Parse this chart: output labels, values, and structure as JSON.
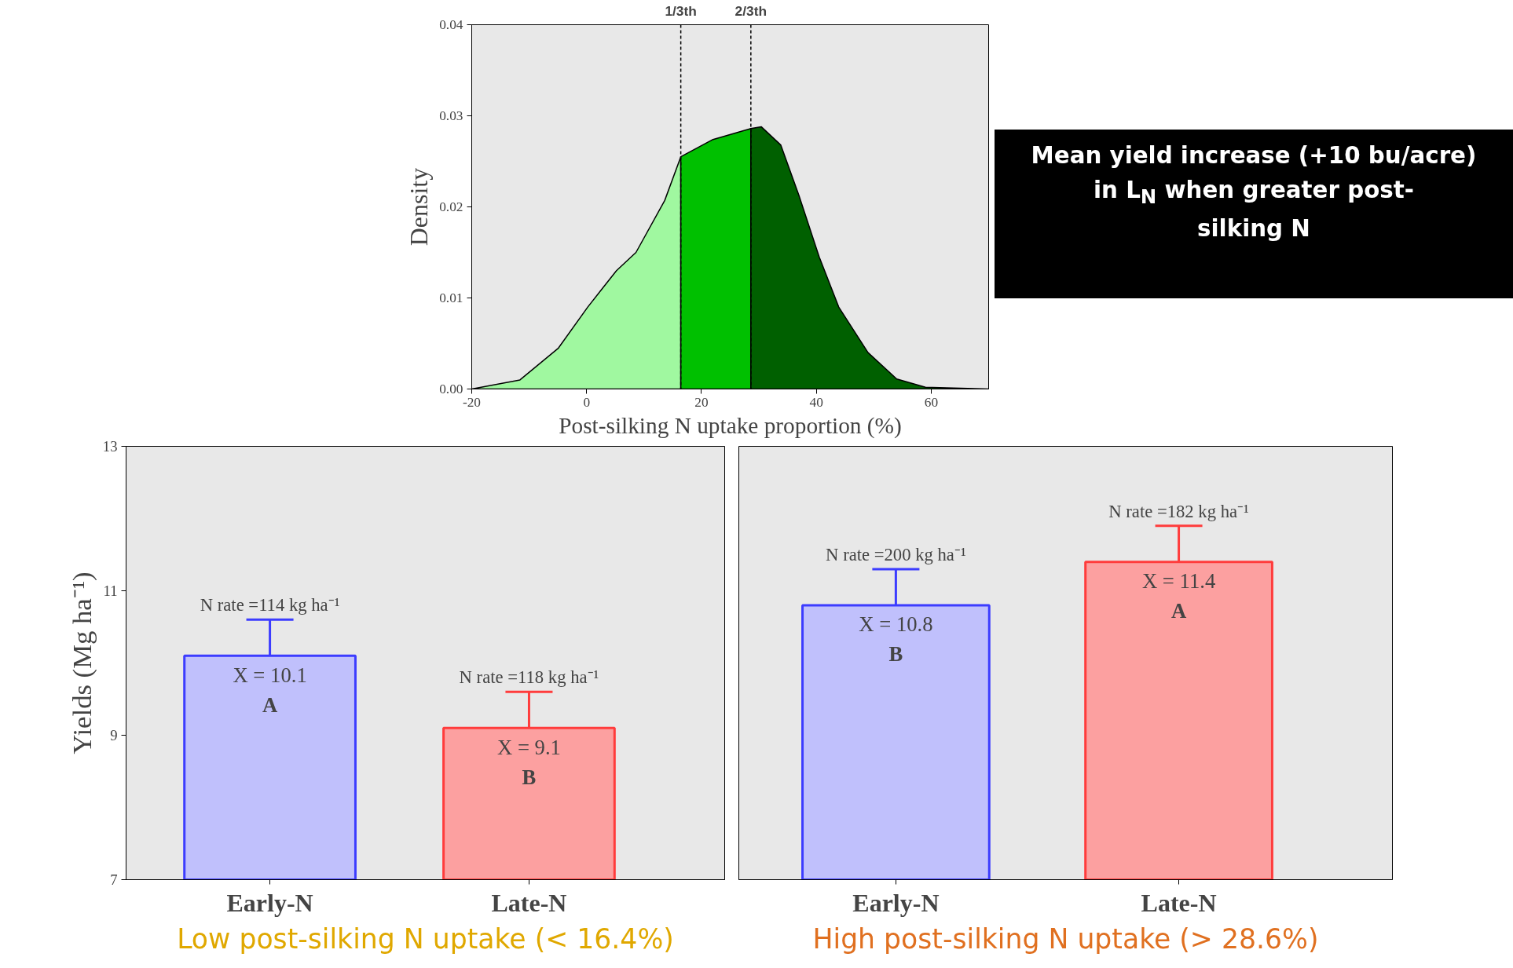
{
  "chart_data": [
    {
      "type": "area",
      "xlabel": "Post-silking N uptake proportion (%)",
      "ylabel": "Density",
      "xlim": [
        -20,
        70
      ],
      "ylim": [
        0,
        0.04
      ],
      "xticks": [
        -20,
        0,
        20,
        40,
        60
      ],
      "yticks": [
        {
          "value": 0,
          "label": "0.00"
        },
        {
          "value": 0.01,
          "label": "0.01"
        },
        {
          "value": 0.02,
          "label": "0.02"
        },
        {
          "value": 0.03,
          "label": "0.03"
        },
        {
          "value": 0.04,
          "label": "0.04"
        }
      ],
      "series": [
        {
          "color": "#a0f8a0",
          "x": [
            -20,
            -11.6,
            -4.9,
            0.2,
            5.2,
            8.6,
            13.6,
            16.4
          ],
          "values": [
            0,
            0.001,
            0.0045,
            0.009,
            0.013,
            0.015,
            0.0207,
            0.0255
          ]
        },
        {
          "color": "#00c000",
          "x": [
            16.4,
            22,
            28.6
          ],
          "values": [
            0.0255,
            0.0274,
            0.0286
          ]
        },
        {
          "color": "#006000",
          "x": [
            28.6,
            30.4,
            33.8,
            37,
            40.5,
            43.9,
            49,
            54,
            59,
            70
          ],
          "values": [
            0.0286,
            0.0288,
            0.0268,
            0.0212,
            0.0145,
            0.009,
            0.004,
            0.0011,
            0.0002,
            0
          ]
        }
      ],
      "ref_lines": [
        {
          "axis": "x",
          "value": 16.4,
          "label": "1/3th",
          "color": "#000000",
          "line_style": "dashed"
        },
        {
          "axis": "x",
          "value": 28.6,
          "label": "2/3th",
          "color": "#000000",
          "line_style": "dashed"
        }
      ],
      "annotations": [
        "Mean yield increase (+10 bu/acre)\nin L$_{N}$ when greater post-\nsilking N"
      ]
    },
    {
      "type": "bar",
      "categories": [
        "Early-N",
        "Late-N"
      ],
      "values": [
        10.1,
        9.1
      ],
      "colors": [
        "#c0c0fc",
        "#fca0a0"
      ],
      "errors": [
        [
          10.1,
          10.6
        ],
        [
          9.1,
          9.6
        ]
      ],
      "ylim": [
        7,
        13
      ],
      "yticks": [
        7,
        9,
        11,
        13
      ],
      "ylabel": "Yields (Mg ha⁻¹)",
      "xlabel": "Low post-silking N uptake (< 16.4%)",
      "value_labels": [
        "X = 10.1",
        "X = 9.1"
      ],
      "annotations": [
        "A",
        "B",
        {
          "text": "N rate =114 kg ha⁻¹",
          "x": "Early-N",
          "y": 10.6
        },
        {
          "text": "N rate =118 kg ha⁻¹",
          "x": "Late-N",
          "y": 9.6
        }
      ]
    },
    {
      "type": "bar",
      "categories": [
        "Early-N",
        "Late-N"
      ],
      "values": [
        10.8,
        11.4
      ],
      "colors": [
        "#c0c0fc",
        "#fca0a0"
      ],
      "errors": [
        [
          10.8,
          11.3
        ],
        [
          11.4,
          11.9
        ]
      ],
      "ylim": [
        7,
        13
      ],
      "yticks": [
        7,
        9,
        11,
        13
      ],
      "tick_labels": "x",
      "xlabel": "High post-silking N uptake (> 28.6%)",
      "value_labels": [
        "X = 10.8",
        "X = 11.4"
      ],
      "annotations": [
        "B",
        "A",
        {
          "text": "N rate =200 kg ha⁻¹",
          "x": "Early-N",
          "y": 11.3
        },
        {
          "text": "N rate =182 kg ha⁻¹",
          "x": "Late-N",
          "y": 11.9
        }
      ]
    }
  ]
}
